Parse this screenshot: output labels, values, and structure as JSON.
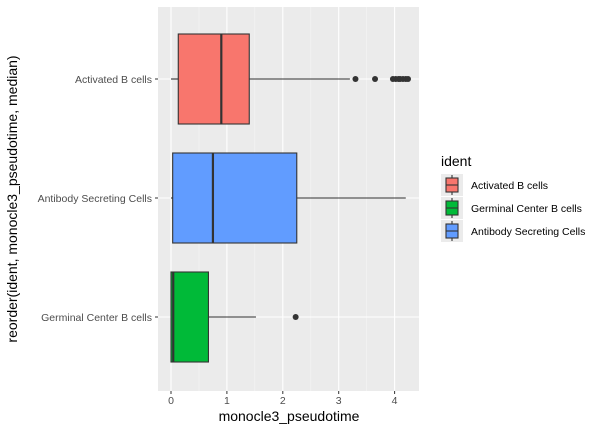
{
  "chart_data": {
    "type": "boxplot",
    "orientation": "horizontal",
    "xlabel": "monocle3_pseudotime",
    "ylabel": "reorder(ident, monocle3_pseudotime, median)",
    "xlim": [
      -0.2,
      4.45
    ],
    "xticks": [
      0,
      1,
      2,
      3,
      4
    ],
    "grid": true,
    "legend": {
      "title": "ident",
      "placement": "right",
      "entries": [
        "Activated B cells",
        "Germinal Center B cells",
        "Antibody Secreting Cells"
      ]
    },
    "categories_top_to_bottom": [
      "Activated B cells",
      "Antibody Secreting Cells",
      "Germinal Center B cells"
    ],
    "series": [
      {
        "name": "Activated B cells",
        "color": "#F8766D",
        "whisker_low": 0.0,
        "q1": 0.13,
        "median": 0.9,
        "q3": 1.4,
        "whisker_high": 3.2,
        "outliers": [
          3.3,
          3.65,
          3.97,
          4.02,
          4.07,
          4.1,
          4.15,
          4.2,
          4.24
        ]
      },
      {
        "name": "Antibody Secreting Cells",
        "color": "#619CFF",
        "whisker_low": 0.0,
        "q1": 0.03,
        "median": 0.75,
        "q3": 2.25,
        "whisker_high": 4.2,
        "outliers": []
      },
      {
        "name": "Germinal Center B cells",
        "color": "#00BA38",
        "whisker_low": 0.0,
        "q1": 0.0,
        "median": 0.04,
        "q3": 0.67,
        "whisker_high": 1.52,
        "outliers": [
          2.23
        ]
      }
    ]
  }
}
